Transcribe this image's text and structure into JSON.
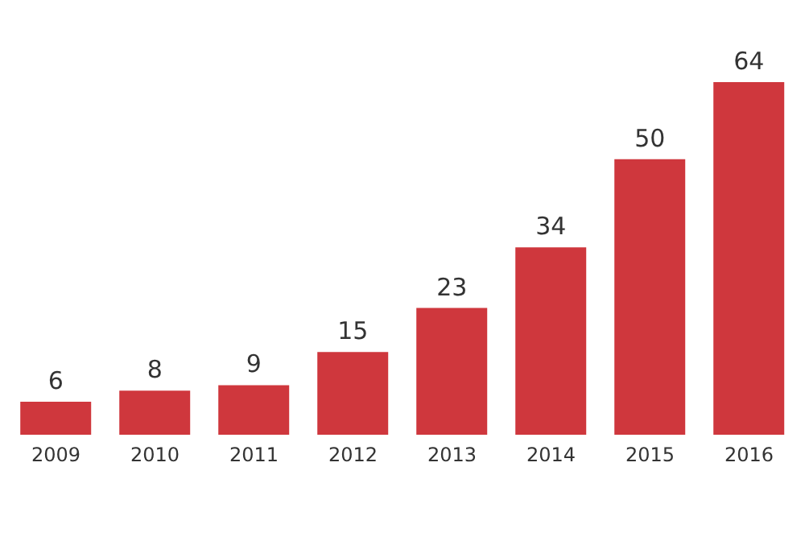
{
  "chart_data": {
    "type": "bar",
    "categories": [
      "2009",
      "2010",
      "2011",
      "2012",
      "2013",
      "2014",
      "2015",
      "2016"
    ],
    "values": [
      6,
      8,
      9,
      15,
      23,
      34,
      50,
      64
    ],
    "color": "#cf373d",
    "data_labels": true
  }
}
